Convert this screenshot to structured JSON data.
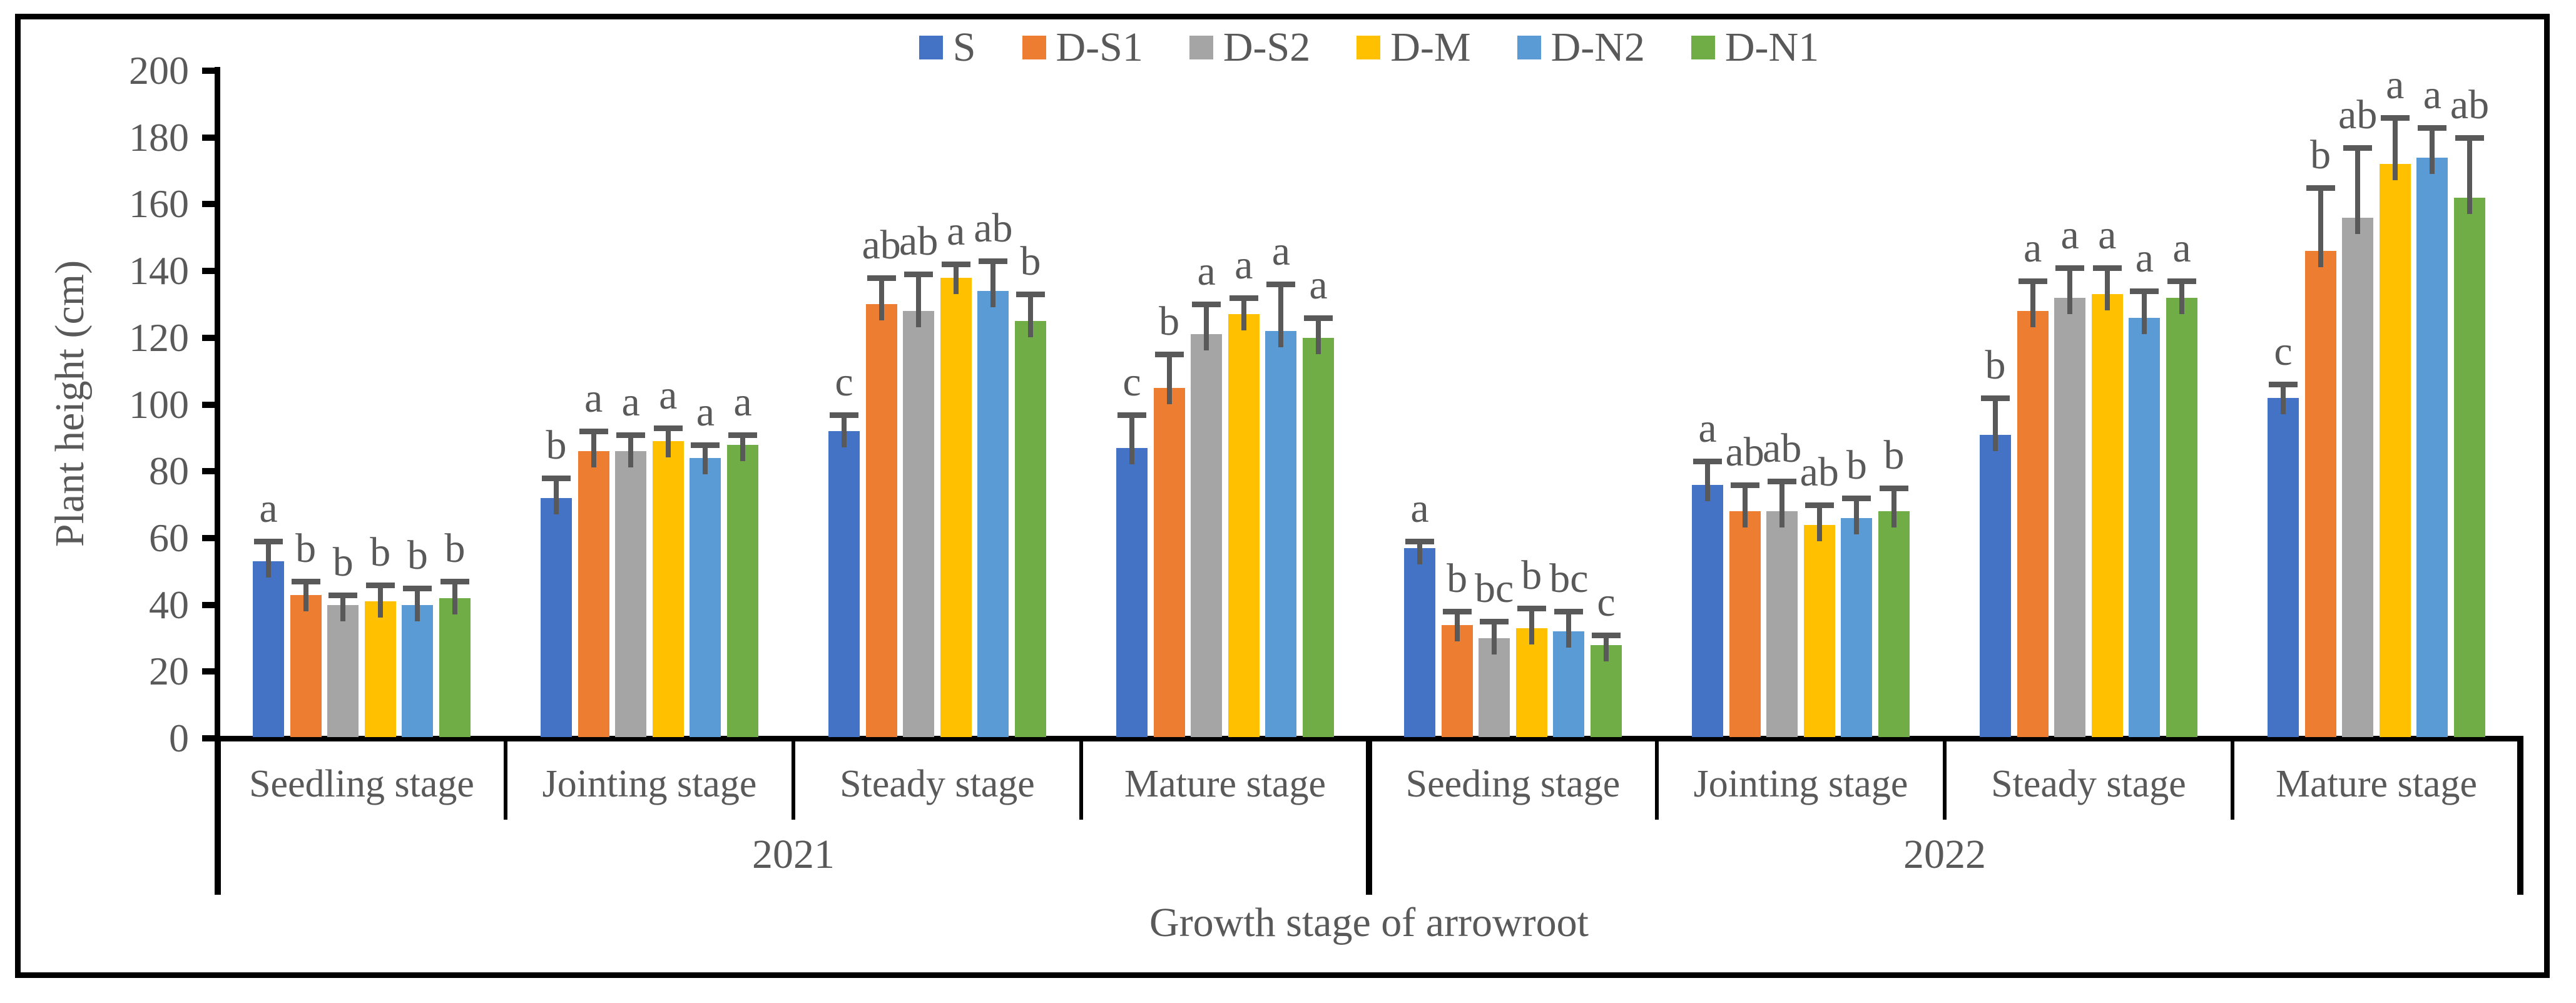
{
  "figure": {
    "background": "#FFFFFF",
    "border_color": "#000000",
    "axis_color": "#000000",
    "text_color": "#595959"
  },
  "legend": {
    "position": "top-center",
    "items": [
      {
        "label": "S",
        "color": "#4472C4"
      },
      {
        "label": "D-S1",
        "color": "#ED7D31"
      },
      {
        "label": "D-S2",
        "color": "#A5A5A5"
      },
      {
        "label": "D-M",
        "color": "#FFC000"
      },
      {
        "label": "D-N2",
        "color": "#5B9BD5"
      },
      {
        "label": "D-N1",
        "color": "#70AD47"
      }
    ]
  },
  "chart_data": {
    "type": "bar",
    "title": "",
    "ylabel": "Plant height (cm)",
    "xlabel": "Growth stage of arrowroot",
    "ylim": [
      0,
      200
    ],
    "yticks": [
      0,
      20,
      40,
      60,
      80,
      100,
      120,
      140,
      160,
      180,
      200
    ],
    "grid": false,
    "error_bars": true,
    "significance_letters": true,
    "series_names": [
      "S",
      "D-S1",
      "D-S2",
      "D-M",
      "D-N2",
      "D-N1"
    ],
    "year_labels": [
      "2021",
      "2022"
    ],
    "groups": [
      {
        "year": "2021",
        "stage": "Seedling stage",
        "values": [
          53,
          43,
          40,
          41,
          40,
          42
        ],
        "errors": [
          6,
          4,
          3,
          5,
          5,
          5
        ],
        "letters": [
          "a",
          "b",
          "b",
          "b",
          "b",
          "b"
        ]
      },
      {
        "year": "2021",
        "stage": "Jointing stage",
        "values": [
          72,
          86,
          86,
          89,
          84,
          88
        ],
        "errors": [
          6,
          6,
          5,
          4,
          4,
          3
        ],
        "letters": [
          "b",
          "a",
          "a",
          "a",
          "a",
          "a"
        ]
      },
      {
        "year": "2021",
        "stage": "Steady stage",
        "values": [
          92,
          130,
          128,
          138,
          134,
          125
        ],
        "errors": [
          5,
          8,
          11,
          4,
          9,
          8
        ],
        "letters": [
          "c",
          "ab",
          "ab",
          "a",
          "ab",
          "b"
        ]
      },
      {
        "year": "2021",
        "stage": "Mature stage",
        "values": [
          87,
          105,
          121,
          127,
          122,
          120
        ],
        "errors": [
          10,
          10,
          9,
          5,
          14,
          6
        ],
        "letters": [
          "c",
          "b",
          "a",
          "a",
          "a",
          "a"
        ]
      },
      {
        "year": "2022",
        "stage": "Seeding stage",
        "values": [
          57,
          34,
          30,
          33,
          32,
          28
        ],
        "errors": [
          2,
          4,
          5,
          6,
          6,
          3
        ],
        "letters": [
          "a",
          "b",
          "bc",
          "b",
          "bc",
          "c"
        ]
      },
      {
        "year": "2022",
        "stage": "Jointing stage",
        "values": [
          76,
          68,
          68,
          64,
          66,
          68
        ],
        "errors": [
          7,
          8,
          9,
          6,
          6,
          7
        ],
        "letters": [
          "a",
          "ab",
          "ab",
          "ab",
          "b",
          "b"
        ]
      },
      {
        "year": "2022",
        "stage": "Steady stage",
        "values": [
          91,
          128,
          132,
          133,
          126,
          132
        ],
        "errors": [
          11,
          9,
          9,
          8,
          8,
          5
        ],
        "letters": [
          "b",
          "a",
          "a",
          "a",
          "a",
          "a"
        ]
      },
      {
        "year": "2022",
        "stage": "Mature stage",
        "values": [
          102,
          146,
          156,
          172,
          174,
          162
        ],
        "errors": [
          4,
          19,
          21,
          14,
          9,
          18
        ],
        "letters": [
          "c",
          "b",
          "ab",
          "a",
          "a",
          "ab"
        ]
      }
    ]
  }
}
